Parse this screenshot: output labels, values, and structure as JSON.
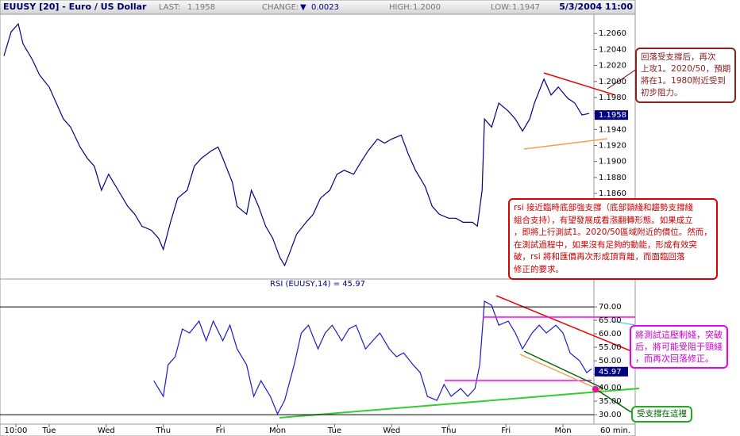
{
  "header": {
    "symbol": "EUUSY [20] - Euro / US Dollar",
    "last_label": "LAST:",
    "last": "1.1958",
    "change_label": "CHANGE:",
    "change_arrow": "▼",
    "change": "0.0023",
    "high_label": "HIGH:",
    "high": "1.2000",
    "low_label": "LOW:",
    "low": "1.1947",
    "datetime": "5/3/2004 11:00"
  },
  "chart_data": [
    {
      "type": "line",
      "xlim": [
        -6,
        243
      ],
      "ylim": [
        1.1755,
        1.2084
      ],
      "yticks": [
        {
          "value": 1.186,
          "label": "1.1860"
        },
        {
          "value": 1.188,
          "label": "1.1880"
        },
        {
          "value": 1.19,
          "label": "1.1900"
        },
        {
          "value": 1.192,
          "label": "1.1920"
        },
        {
          "value": 1.194,
          "label": "1.1940"
        },
        {
          "value": 1.196,
          "label": "1.1960"
        },
        {
          "value": 1.198,
          "label": "1.1980"
        },
        {
          "value": 1.2,
          "label": "1.2000"
        },
        {
          "value": 1.202,
          "label": "1.2020"
        },
        {
          "value": 1.204,
          "label": "1.2040"
        },
        {
          "value": 1.206,
          "label": "1.2060"
        }
      ],
      "last_marker": {
        "value": 1.1958,
        "label": "1.1958"
      },
      "x": [
        -5,
        -2,
        1,
        3,
        7,
        10,
        14,
        17,
        20,
        23,
        27,
        30,
        33,
        36,
        39,
        43,
        47,
        50,
        53,
        57,
        60,
        62,
        65,
        68,
        72,
        75,
        78,
        82,
        85,
        87,
        91,
        93,
        97,
        99,
        102,
        105,
        108,
        111,
        113,
        115,
        118,
        122,
        125,
        128,
        132,
        135,
        138,
        142,
        145,
        148,
        152,
        155,
        158,
        162,
        165,
        168,
        172,
        175,
        178,
        182,
        185,
        188,
        192,
        194,
        196,
        197,
        200,
        203,
        207,
        210,
        213,
        216,
        218,
        222,
        225,
        228,
        232,
        235,
        238,
        241
      ],
      "series": [
        {
          "color": "#000080",
          "values": [
            1.2032,
            1.2062,
            1.2072,
            1.2047,
            1.2027,
            1.2008,
            1.1993,
            1.1973,
            1.1953,
            1.1943,
            1.1918,
            1.1904,
            1.1894,
            1.1864,
            1.1884,
            1.1864,
            1.1844,
            1.1834,
            1.1819,
            1.1814,
            1.1804,
            1.179,
            1.1824,
            1.1854,
            1.1864,
            1.1894,
            1.1904,
            1.1913,
            1.1918,
            1.1904,
            1.1874,
            1.1844,
            1.1834,
            1.1864,
            1.1844,
            1.1819,
            1.1804,
            1.178,
            1.177,
            1.1785,
            1.1809,
            1.1824,
            1.1834,
            1.1854,
            1.1864,
            1.1884,
            1.1889,
            1.1884,
            1.1899,
            1.1913,
            1.1928,
            1.1923,
            1.1928,
            1.1933,
            1.1909,
            1.1889,
            1.1869,
            1.1844,
            1.1834,
            1.1829,
            1.1829,
            1.1824,
            1.1824,
            1.1819,
            1.1864,
            1.1953,
            1.1943,
            1.1973,
            1.1963,
            1.1953,
            1.1938,
            1.1953,
            1.1973,
            1.2003,
            1.1983,
            1.1993,
            1.1979,
            1.1973,
            1.1958,
            1.196
          ]
        }
      ]
    },
    {
      "type": "line",
      "title": "RSI (EUUSY,14) = 45.97",
      "xlabel": "60 min.",
      "xlim": [
        -6,
        243
      ],
      "ylim": [
        26.5,
        76.5
      ],
      "yticks": [
        {
          "value": 30,
          "label": "30.00"
        },
        {
          "value": 35,
          "label": "35.00"
        },
        {
          "value": 40,
          "label": "40.00"
        },
        {
          "value": 45,
          "label": "45.00"
        },
        {
          "value": 50,
          "label": "50.00"
        },
        {
          "value": 55,
          "label": "55.00"
        },
        {
          "value": 60,
          "label": "60.00"
        },
        {
          "value": 65,
          "label": "65.00"
        },
        {
          "value": 70,
          "label": "70.00"
        }
      ],
      "ref_lines": [
        70,
        30
      ],
      "xticks": [
        {
          "value": 0,
          "label": "10:00"
        },
        {
          "value": 14,
          "label": "Tue"
        },
        {
          "value": 38,
          "label": "Wed"
        },
        {
          "value": 62,
          "label": "Thu"
        },
        {
          "value": 86,
          "label": "Fri"
        },
        {
          "value": 110,
          "label": "Mon"
        },
        {
          "value": 134,
          "label": "Tue"
        },
        {
          "value": 158,
          "label": "Wed"
        },
        {
          "value": 182,
          "label": "Thu"
        },
        {
          "value": 206,
          "label": "Fri"
        },
        {
          "value": 230,
          "label": "Mon"
        }
      ],
      "last_marker": {
        "value": 45.97,
        "label": "45.97"
      },
      "x": [
        58,
        62,
        64,
        67,
        70,
        73,
        77,
        80,
        83,
        87,
        90,
        93,
        97,
        100,
        103,
        107,
        110,
        113,
        117,
        120,
        123,
        127,
        130,
        133,
        137,
        140,
        143,
        147,
        150,
        153,
        157,
        160,
        163,
        167,
        170,
        173,
        177,
        180,
        183,
        187,
        190,
        193,
        195,
        197,
        200,
        203,
        207,
        210,
        213,
        217,
        220,
        223,
        227,
        230,
        233,
        237,
        240,
        242
      ],
      "series": [
        {
          "color": "#1a1acc",
          "values": [
            42.6,
            36.8,
            48.5,
            51.5,
            61.8,
            60.3,
            64.7,
            57.4,
            64.7,
            57.4,
            63.2,
            54.4,
            48.5,
            36.8,
            42.6,
            36.8,
            30.3,
            35.3,
            48.5,
            60.3,
            63.2,
            54.4,
            60.3,
            63.2,
            57.4,
            61.8,
            63.2,
            54.4,
            57.4,
            60.3,
            54.4,
            51.5,
            52.9,
            48.5,
            45.6,
            36.8,
            35.3,
            41.2,
            36.8,
            39.7,
            36.8,
            39.7,
            48.5,
            72.1,
            70.6,
            63.2,
            64.7,
            60.3,
            54.4,
            60.3,
            63.2,
            60.3,
            63.2,
            60.3,
            52.9,
            50,
            45.6,
            47
          ]
        }
      ]
    }
  ],
  "annotations": [
    {
      "lines": [
        "回落受支撐后，再次",
        "上攻1。2020/50，預期",
        "將在1。1980附近受到",
        "初步阻力。"
      ]
    },
    {
      "lines": [
        "rsi 接近臨時底部強支撐（底部頸綫和趨勢支撐綫",
        "組合支持），有望發展成看漲翻轉形態。如果成立",
        "，即將上行測試1。2020/50區域附近的價位。然而，",
        "在測試過程中，如果沒有足夠的動能，形成有效突",
        "破，rsi 將和匯價再次形成頂背離，而面臨回落",
        "修正的要求。"
      ]
    },
    {
      "lines": [
        "將測試這壓制綫，突破",
        "后，將可能受阻于頸綫",
        "，而再次回落修正。"
      ]
    },
    {
      "lines": [
        "受支撐在這裡"
      ]
    }
  ]
}
